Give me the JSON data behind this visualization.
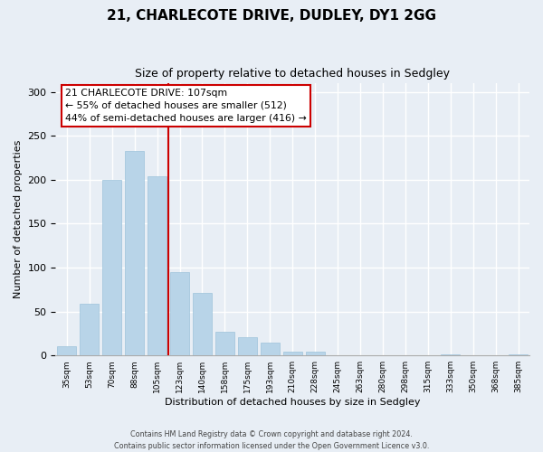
{
  "title": "21, CHARLECOTE DRIVE, DUDLEY, DY1 2GG",
  "subtitle": "Size of property relative to detached houses in Sedgley",
  "xlabel": "Distribution of detached houses by size in Sedgley",
  "ylabel": "Number of detached properties",
  "categories": [
    "35sqm",
    "53sqm",
    "70sqm",
    "88sqm",
    "105sqm",
    "123sqm",
    "140sqm",
    "158sqm",
    "175sqm",
    "193sqm",
    "210sqm",
    "228sqm",
    "245sqm",
    "263sqm",
    "280sqm",
    "298sqm",
    "315sqm",
    "333sqm",
    "350sqm",
    "368sqm",
    "385sqm"
  ],
  "values": [
    10,
    59,
    200,
    233,
    204,
    95,
    71,
    27,
    21,
    15,
    4,
    4,
    0,
    0,
    0,
    0,
    0,
    1,
    0,
    0,
    1
  ],
  "bar_color": "#b8d4e8",
  "bar_edge_color": "#9dc3db",
  "reference_line_index": 4,
  "reference_line_color": "#cc0000",
  "annotation_title": "21 CHARLECOTE DRIVE: 107sqm",
  "annotation_line1": "← 55% of detached houses are smaller (512)",
  "annotation_line2": "44% of semi-detached houses are larger (416) →",
  "annotation_box_facecolor": "#ffffff",
  "annotation_box_edgecolor": "#cc0000",
  "ylim": [
    0,
    310
  ],
  "yticks": [
    0,
    50,
    100,
    150,
    200,
    250,
    300
  ],
  "footer_line1": "Contains HM Land Registry data © Crown copyright and database right 2024.",
  "footer_line2": "Contains public sector information licensed under the Open Government Licence v3.0.",
  "background_color": "#e8eef5",
  "grid_color": "#ffffff",
  "title_fontsize": 11,
  "subtitle_fontsize": 9
}
